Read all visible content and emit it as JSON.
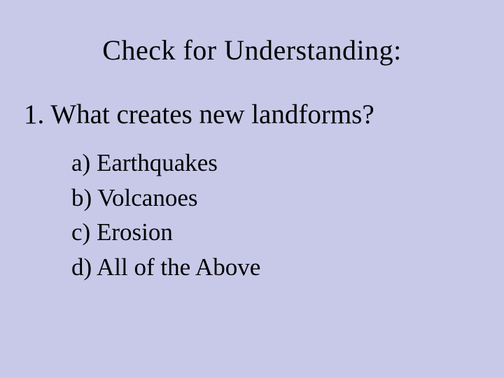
{
  "slide": {
    "background_color": "#c8c9e8",
    "text_color": "#000000",
    "font_family": "Times New Roman",
    "title": "Check for Understanding:",
    "title_fontsize": 40,
    "question": "1. What creates new landforms?",
    "question_fontsize": 39,
    "options": [
      "a) Earthquakes",
      "b) Volcanoes",
      "c) Erosion",
      "d) All of the Above"
    ],
    "option_fontsize": 35
  }
}
